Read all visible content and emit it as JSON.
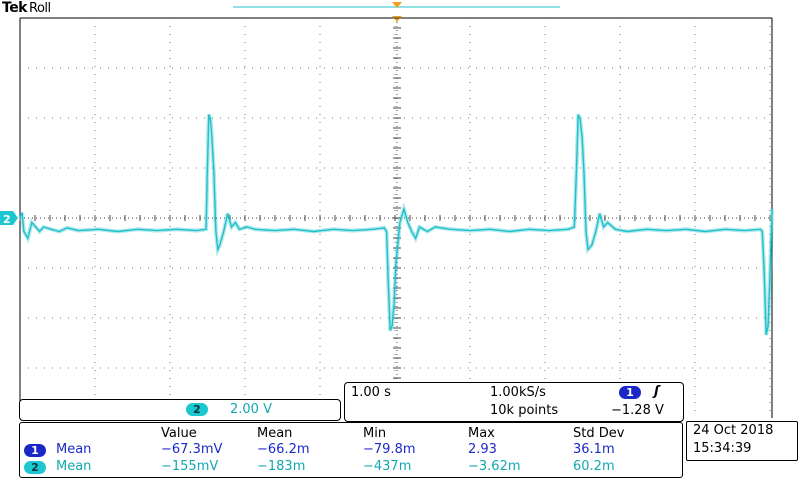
{
  "header": {
    "brand": "Tek",
    "mode": "Roll"
  },
  "channel_marker": "2",
  "colors": {
    "ch1": "#1a28c8",
    "ch2": "#20c0c8",
    "trigger": "#f0a020",
    "grid": "#7a7a7a"
  },
  "chart_data": {
    "type": "line",
    "series": [
      {
        "name": "2",
        "x_div": [
          0,
          0.05,
          0.1,
          0.2,
          0.3,
          0.4,
          0.5,
          0.6,
          0.8,
          1.0,
          1.2,
          1.5,
          2.0,
          2.5,
          3.0,
          3.5,
          4.0,
          4.5,
          4.75,
          4.78,
          4.82,
          4.86,
          4.9,
          4.95,
          5.0,
          5.05,
          5.1,
          5.2,
          5.3,
          5.4,
          5.5,
          5.6,
          5.8,
          6.0,
          6.5,
          7.0,
          7.5,
          8.0,
          8.5,
          9.0,
          9.3,
          9.36,
          9.4,
          9.45,
          9.5,
          9.55,
          9.6,
          9.7,
          9.8,
          9.9,
          10.0,
          10.1,
          10.2,
          10.4,
          10.6,
          11.0,
          11.5,
          12.0,
          12.5,
          13.0,
          13.5,
          14.0,
          14.15,
          14.2,
          14.25,
          14.3,
          14.35,
          14.4,
          14.45,
          14.5,
          14.6,
          14.7,
          14.8,
          14.9,
          15.0,
          15.2,
          15.5,
          16.0,
          16.5,
          17.0,
          17.5,
          18.0,
          18.5,
          18.9,
          18.95,
          19.0,
          19.05,
          19.1,
          19.15,
          19.2
        ],
        "y_div": [
          0,
          0.12,
          -0.3,
          -0.45,
          -0.1,
          -0.2,
          -0.3,
          -0.2,
          -0.25,
          -0.3,
          -0.22,
          -0.28,
          -0.25,
          -0.3,
          -0.25,
          -0.28,
          -0.25,
          -0.28,
          -0.25,
          0.9,
          2.3,
          2.2,
          1.8,
          1.0,
          -0.3,
          -0.7,
          -0.6,
          -0.3,
          0.1,
          -0.2,
          -0.1,
          -0.25,
          -0.2,
          -0.25,
          -0.28,
          -0.25,
          -0.3,
          -0.25,
          -0.28,
          -0.25,
          -0.22,
          -0.3,
          -1.4,
          -2.5,
          -2.4,
          -1.9,
          -1.0,
          -0.1,
          0.2,
          -0.1,
          -0.3,
          -0.45,
          -0.2,
          -0.3,
          -0.2,
          -0.25,
          -0.28,
          -0.25,
          -0.3,
          -0.25,
          -0.28,
          -0.25,
          -0.2,
          0.9,
          2.3,
          2.2,
          1.8,
          1.0,
          -0.3,
          -0.7,
          -0.6,
          -0.3,
          0.1,
          -0.2,
          -0.1,
          -0.25,
          -0.3,
          -0.25,
          -0.28,
          -0.25,
          -0.3,
          -0.25,
          -0.28,
          -0.25,
          -0.3,
          -1.2,
          -2.6,
          -2.4,
          -1.2,
          0.2
        ]
      }
    ],
    "x_divisions": 19.2,
    "y_divisions": 10,
    "grid": true
  },
  "channel_scale": {
    "channel": "2",
    "value": "2.00 V"
  },
  "timebase": {
    "time_per_div": "1.00 s",
    "sample_rate": "1.00kS/s",
    "record_length": "10k points",
    "trigger_channel": "1",
    "trigger_slope_icon": "ʃ",
    "trigger_level": "−1.28 V"
  },
  "measurements": {
    "headers": [
      "Value",
      "Mean",
      "Min",
      "Max",
      "Std Dev"
    ],
    "rows": [
      {
        "channel": "1",
        "type": "Mean",
        "values": [
          "−67.3mV",
          "−66.2m",
          "−79.8m",
          "2.93",
          "36.1m"
        ]
      },
      {
        "channel": "2",
        "type": "Mean",
        "values": [
          "−155mV",
          "−183m",
          "−437m",
          "−3.62m",
          "60.2m"
        ]
      }
    ]
  },
  "datetime": {
    "date": "24 Oct  2018",
    "time": "15:34:39"
  }
}
